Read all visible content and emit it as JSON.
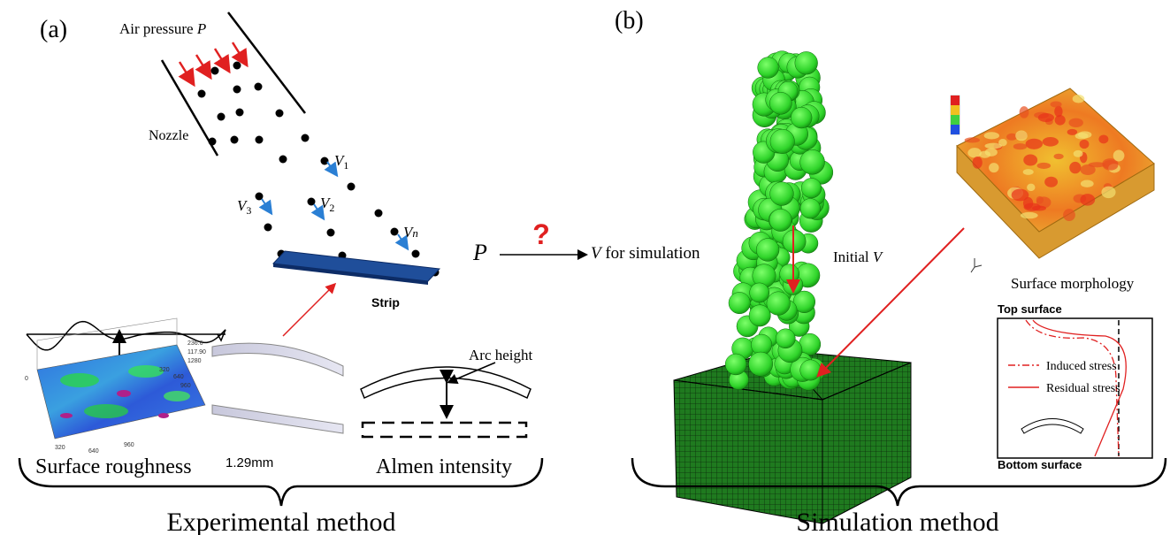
{
  "panel_a": {
    "label": "(a)",
    "air_pressure": {
      "text": "Air pressure ",
      "symbol": "P"
    },
    "nozzle": "Nozzle",
    "velocities": [
      {
        "symbol": "V",
        "sub": "1"
      },
      {
        "symbol": "V",
        "sub": "2"
      },
      {
        "symbol": "V",
        "sub": "3"
      },
      {
        "symbol": "V",
        "sub": "n"
      }
    ],
    "strip": "Strip",
    "roughness_axis_labels": [
      "236.6",
      "117.90",
      "1280",
      "960",
      "640",
      "320",
      "0",
      "320",
      "640",
      "960"
    ],
    "thickness": "1.29mm",
    "arc_height": "Arc height",
    "surface_roughness": "Surface roughness",
    "almen_intensity": "Almen intensity",
    "method": "Experimental method"
  },
  "mapping": {
    "input": "P",
    "question": "?",
    "output": {
      "symbol": "V",
      "text": " for simulation"
    }
  },
  "panel_b": {
    "label": "(b)",
    "initial_v": {
      "text": "Initial ",
      "symbol": "V"
    },
    "surface_morphology": "Surface morphology",
    "top_surface": "Top surface",
    "bottom_surface": "Bottom surface",
    "legend": [
      "Induced stress",
      "Residual  stress"
    ],
    "method": "Simulation method"
  }
}
